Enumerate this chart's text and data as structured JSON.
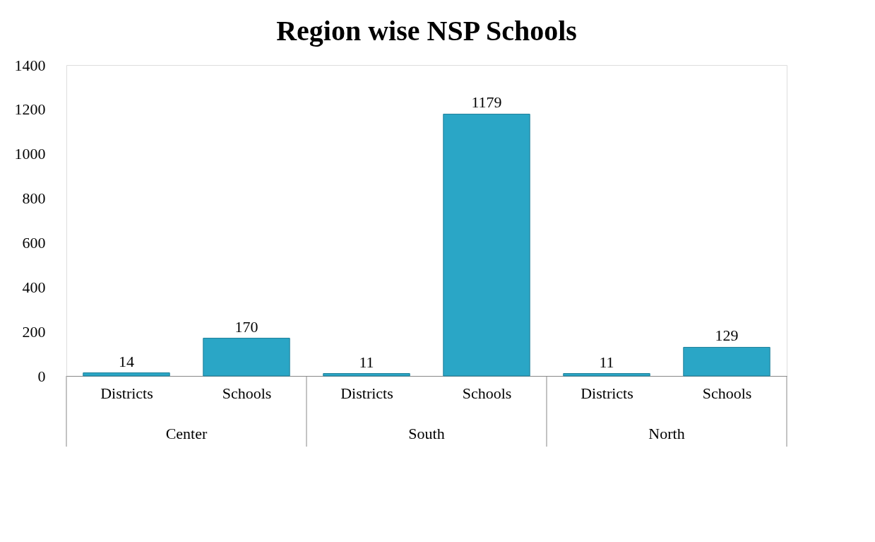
{
  "chart_data": {
    "type": "bar",
    "title": "Region wise NSP Schools",
    "categories": [
      "Districts",
      "Schools",
      "Districts",
      "Schools",
      "Districts",
      "Schools"
    ],
    "values": [
      14,
      170,
      11,
      1179,
      11,
      129
    ],
    "color": "#2aa6c6",
    "ylim": [
      0,
      1400
    ],
    "yticks": [
      0,
      200,
      400,
      600,
      800,
      1000,
      1200,
      1400
    ],
    "grid": false,
    "data_labels": true,
    "annotations": [
      "Center",
      "South",
      "North"
    ]
  }
}
